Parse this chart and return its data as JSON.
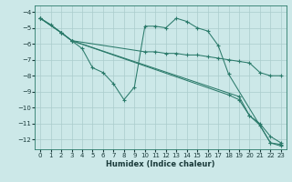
{
  "xlabel": "Humidex (Indice chaleur)",
  "bg_color": "#cce8e8",
  "line_color": "#2a7a6a",
  "xlim": [
    -0.5,
    23.5
  ],
  "ylim": [
    -12.6,
    -3.6
  ],
  "yticks": [
    -4,
    -5,
    -6,
    -7,
    -8,
    -9,
    -10,
    -11,
    -12
  ],
  "xticks": [
    0,
    1,
    2,
    3,
    4,
    5,
    6,
    7,
    8,
    9,
    10,
    11,
    12,
    13,
    14,
    15,
    16,
    17,
    18,
    19,
    20,
    21,
    22,
    23
  ],
  "series": [
    {
      "x": [
        0,
        1,
        2,
        3,
        4,
        5,
        6,
        7,
        8,
        9,
        10,
        11,
        12,
        13,
        14,
        15,
        16,
        17,
        18,
        22,
        23
      ],
      "y": [
        -4.4,
        -4.8,
        -5.3,
        -5.8,
        -6.3,
        -7.5,
        -7.8,
        -8.5,
        -9.5,
        -8.7,
        -4.9,
        -4.9,
        -5.0,
        -4.4,
        -4.6,
        -5.0,
        -5.2,
        -6.1,
        -7.9,
        -12.2,
        -12.3
      ]
    },
    {
      "x": [
        0,
        2,
        3,
        10,
        11,
        12,
        13,
        14,
        15,
        16,
        17,
        18,
        19,
        20,
        21,
        22,
        23
      ],
      "y": [
        -4.4,
        -5.3,
        -5.8,
        -6.5,
        -6.5,
        -6.6,
        -6.6,
        -6.7,
        -6.7,
        -6.8,
        -6.9,
        -7.0,
        -7.1,
        -7.2,
        -7.8,
        -8.0,
        -8.0
      ]
    },
    {
      "x": [
        0,
        2,
        3,
        18,
        19,
        20,
        21,
        22,
        23
      ],
      "y": [
        -4.4,
        -5.3,
        -5.8,
        -9.2,
        -9.5,
        -10.5,
        -11.0,
        -11.8,
        -12.2
      ]
    },
    {
      "x": [
        0,
        2,
        3,
        19,
        20,
        21,
        22,
        23
      ],
      "y": [
        -4.4,
        -5.3,
        -5.8,
        -9.3,
        -10.5,
        -11.1,
        -12.2,
        -12.4
      ]
    }
  ]
}
